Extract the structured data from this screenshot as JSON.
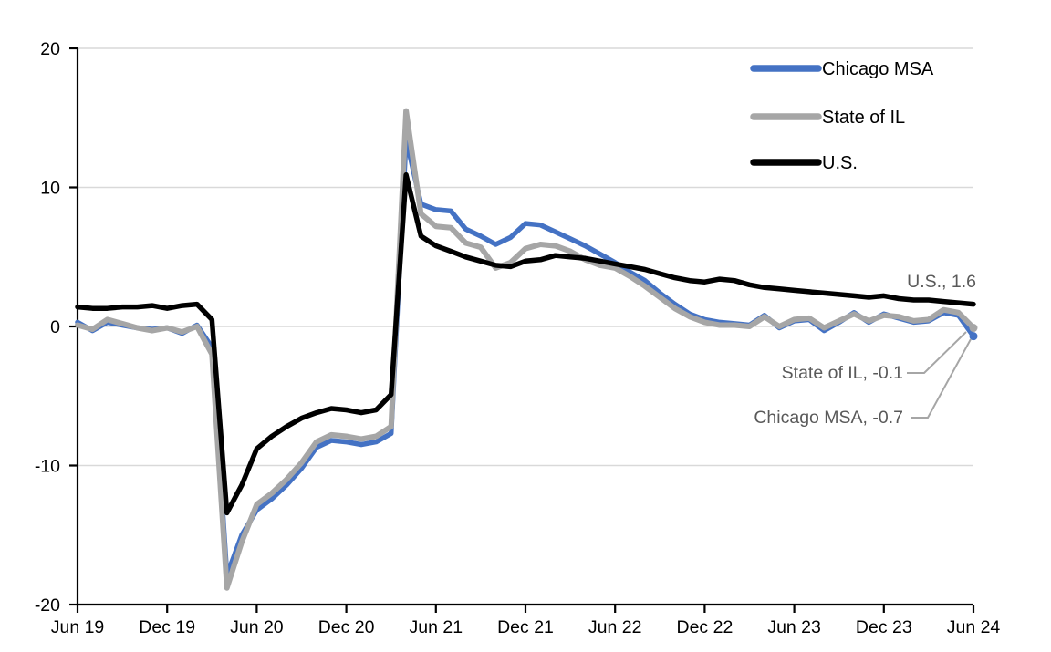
{
  "chart_data": {
    "type": "line",
    "title": "",
    "xlabel": "",
    "ylabel": "",
    "ylim": [
      -20,
      20
    ],
    "grid": true,
    "legend_position": "top-right",
    "y_ticks": [
      20,
      10,
      0,
      -10,
      -20
    ],
    "y_tick_labels": [
      "20",
      "10",
      "0",
      "-10",
      "-20"
    ],
    "x_tick_labels": [
      "Jun 19",
      "Dec 19",
      "Jun 20",
      "Dec 20",
      "Jun 21",
      "Dec 21",
      "Jun 22",
      "Dec 22",
      "Jun 23",
      "Dec 23",
      "Jun 24"
    ],
    "x_months": [
      "Jun 19",
      "Jul 19",
      "Aug 19",
      "Sep 19",
      "Oct 19",
      "Nov 19",
      "Dec 19",
      "Jan 20",
      "Feb 20",
      "Mar 20",
      "Apr 20",
      "May 20",
      "Jun 20",
      "Jul 20",
      "Aug 20",
      "Sep 20",
      "Oct 20",
      "Nov 20",
      "Dec 20",
      "Jan 21",
      "Feb 21",
      "Mar 21",
      "Apr 21",
      "May 21",
      "Jun 21",
      "Jul 21",
      "Aug 21",
      "Sep 21",
      "Oct 21",
      "Nov 21",
      "Dec 21",
      "Jan 22",
      "Feb 22",
      "Mar 22",
      "Apr 22",
      "May 22",
      "Jun 22",
      "Jul 22",
      "Aug 22",
      "Sep 22",
      "Oct 22",
      "Nov 22",
      "Dec 22",
      "Jan 23",
      "Feb 23",
      "Mar 23",
      "Apr 23",
      "May 23",
      "Jun 23",
      "Jul 23",
      "Aug 23",
      "Sep 23",
      "Oct 23",
      "Nov 23",
      "Dec 23",
      "Jan 24",
      "Feb 24",
      "Mar 24",
      "Apr 24",
      "May 24",
      "Jun 24"
    ],
    "series": [
      {
        "name": "Chicago MSA",
        "color": "#4472C4",
        "end_value": -0.7,
        "end_dot": true,
        "values": [
          0.3,
          -0.3,
          0.3,
          0.1,
          -0.1,
          -0.2,
          -0.1,
          -0.5,
          0.1,
          -1.5,
          -17.9,
          -15.0,
          -13.2,
          -12.4,
          -11.4,
          -10.2,
          -8.7,
          -8.2,
          -8.3,
          -8.5,
          -8.3,
          -7.7,
          13.5,
          8.8,
          8.4,
          8.3,
          7.0,
          6.5,
          5.9,
          6.4,
          7.4,
          7.3,
          6.8,
          6.3,
          5.8,
          5.2,
          4.6,
          3.9,
          3.3,
          2.4,
          1.6,
          0.9,
          0.5,
          0.3,
          0.2,
          0.1,
          0.8,
          -0.1,
          0.4,
          0.5,
          -0.3,
          0.3,
          1.0,
          0.3,
          0.9,
          0.6,
          0.3,
          0.4,
          1.0,
          0.8,
          -0.7
        ]
      },
      {
        "name": "State of IL",
        "color": "#A6A6A6",
        "end_value": -0.1,
        "end_dot": true,
        "values": [
          0.1,
          -0.2,
          0.5,
          0.2,
          -0.1,
          -0.3,
          -0.1,
          -0.4,
          0.0,
          -2.0,
          -18.8,
          -15.5,
          -12.8,
          -12.0,
          -11.0,
          -9.8,
          -8.3,
          -7.8,
          -7.9,
          -8.1,
          -7.9,
          -7.2,
          15.5,
          8.1,
          7.2,
          7.1,
          6.0,
          5.7,
          4.2,
          4.6,
          5.6,
          5.9,
          5.8,
          5.4,
          4.8,
          4.4,
          4.2,
          3.6,
          2.9,
          2.1,
          1.3,
          0.7,
          0.3,
          0.1,
          0.1,
          0.0,
          0.7,
          0.0,
          0.5,
          0.6,
          -0.1,
          0.4,
          0.9,
          0.4,
          0.8,
          0.7,
          0.4,
          0.5,
          1.2,
          1.0,
          -0.1
        ]
      },
      {
        "name": "U.S.",
        "color": "#000000",
        "end_value": 1.6,
        "end_dot": false,
        "values": [
          1.4,
          1.3,
          1.3,
          1.4,
          1.4,
          1.5,
          1.3,
          1.5,
          1.6,
          0.5,
          -13.4,
          -11.4,
          -8.8,
          -7.9,
          -7.2,
          -6.6,
          -6.2,
          -5.9,
          -6.0,
          -6.2,
          -6.0,
          -4.9,
          10.9,
          6.5,
          5.8,
          5.4,
          5.0,
          4.7,
          4.4,
          4.3,
          4.7,
          4.8,
          5.1,
          5.0,
          4.9,
          4.7,
          4.5,
          4.3,
          4.1,
          3.8,
          3.5,
          3.3,
          3.2,
          3.4,
          3.3,
          3.0,
          2.8,
          2.7,
          2.6,
          2.5,
          2.4,
          2.3,
          2.2,
          2.1,
          2.2,
          2.0,
          1.9,
          1.9,
          1.8,
          1.7,
          1.6
        ]
      }
    ],
    "annotations": [
      {
        "text": "U.S., 1.6",
        "color": "#595959"
      },
      {
        "text": "State of IL, -0.1",
        "color": "#595959"
      },
      {
        "text": "Chicago MSA, -0.7",
        "color": "#595959"
      }
    ],
    "colors": {
      "gridline": "#D9D9D9",
      "axis": "#000000",
      "leader": "#A6A6A6",
      "background": "#FFFFFF"
    }
  }
}
